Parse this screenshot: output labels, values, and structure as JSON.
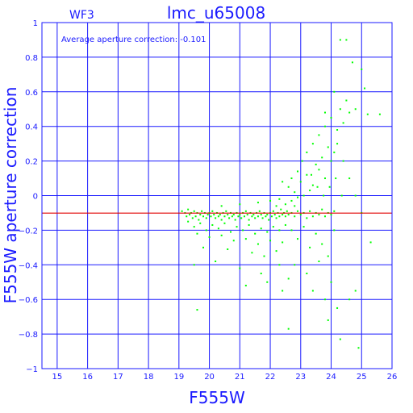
{
  "chart_data": {
    "type": "scatter",
    "title": "lmc_u65008",
    "chip_label": "WF3",
    "annotation": "Average aperture correction: -0.101",
    "xlabel": "F555W",
    "ylabel": "F555W aperture correction",
    "xlim": [
      14.5,
      26
    ],
    "ylim": [
      -1,
      1
    ],
    "x_ticks": [
      15,
      16,
      17,
      18,
      19,
      20,
      21,
      22,
      23,
      24,
      25,
      26
    ],
    "y_ticks": [
      -1,
      -0.8,
      -0.6,
      -0.4,
      -0.2,
      0,
      0.2,
      0.4,
      0.6,
      0.8,
      1
    ],
    "x_tick_labels": [
      "15",
      "16",
      "17",
      "18",
      "19",
      "20",
      "21",
      "22",
      "23",
      "24",
      "25",
      "26"
    ],
    "y_tick_labels": [
      "−1",
      "−0.8",
      "−0.6",
      "−0.4",
      "−0.2",
      "0",
      "0.2",
      "0.4",
      "0.6",
      "0.8",
      "1"
    ],
    "grid": true,
    "reference_line": {
      "y": -0.101,
      "color": "#e00000"
    },
    "colors": {
      "axes": "#1a1aff",
      "grid": "#1a1aff",
      "points": "#00ff00",
      "text": "#1a1aff",
      "annotation": "#1a1aff"
    },
    "series": [
      {
        "points": [
          [
            19.1,
            -0.09
          ],
          [
            19.2,
            -0.1
          ],
          [
            19.25,
            -0.12
          ],
          [
            19.3,
            -0.08
          ],
          [
            19.35,
            -0.11
          ],
          [
            19.4,
            -0.1
          ],
          [
            19.45,
            -0.13
          ],
          [
            19.5,
            -0.09
          ],
          [
            19.55,
            -0.12
          ],
          [
            19.6,
            -0.1
          ],
          [
            19.65,
            -0.14
          ],
          [
            19.7,
            -0.11
          ],
          [
            19.75,
            -0.09
          ],
          [
            19.8,
            -0.12
          ],
          [
            19.85,
            -0.1
          ],
          [
            19.9,
            -0.13
          ],
          [
            19.95,
            -0.11
          ],
          [
            20.0,
            -0.1
          ],
          [
            20.05,
            -0.12
          ],
          [
            20.1,
            -0.09
          ],
          [
            20.15,
            -0.11
          ],
          [
            20.2,
            -0.13
          ],
          [
            20.25,
            -0.1
          ],
          [
            20.3,
            -0.12
          ],
          [
            20.35,
            -0.11
          ],
          [
            20.4,
            -0.14
          ],
          [
            20.45,
            -0.1
          ],
          [
            20.5,
            -0.12
          ],
          [
            20.55,
            -0.09
          ],
          [
            20.6,
            -0.11
          ],
          [
            20.65,
            -0.13
          ],
          [
            20.7,
            -0.1
          ],
          [
            20.75,
            -0.12
          ],
          [
            20.8,
            -0.11
          ],
          [
            20.85,
            -0.14
          ],
          [
            20.9,
            -0.1
          ],
          [
            20.95,
            -0.12
          ],
          [
            21.0,
            -0.11
          ],
          [
            21.05,
            -0.13
          ],
          [
            21.1,
            -0.1
          ],
          [
            21.15,
            -0.12
          ],
          [
            21.2,
            -0.09
          ],
          [
            21.25,
            -0.11
          ],
          [
            21.3,
            -0.14
          ],
          [
            21.35,
            -0.1
          ],
          [
            21.4,
            -0.12
          ],
          [
            21.45,
            -0.11
          ],
          [
            21.5,
            -0.13
          ],
          [
            21.55,
            -0.1
          ],
          [
            21.6,
            -0.12
          ],
          [
            21.65,
            -0.09
          ],
          [
            21.7,
            -0.11
          ],
          [
            21.75,
            -0.13
          ],
          [
            21.8,
            -0.1
          ],
          [
            21.85,
            -0.12
          ],
          [
            21.9,
            -0.11
          ],
          [
            21.95,
            -0.14
          ],
          [
            22.0,
            -0.1
          ],
          [
            22.05,
            -0.12
          ],
          [
            22.1,
            -0.09
          ],
          [
            22.15,
            -0.11
          ],
          [
            22.2,
            -0.13
          ],
          [
            22.25,
            -0.1
          ],
          [
            22.3,
            -0.12
          ],
          [
            22.35,
            -0.08
          ],
          [
            22.4,
            -0.11
          ],
          [
            22.45,
            -0.1
          ],
          [
            22.5,
            -0.12
          ],
          [
            22.55,
            -0.09
          ],
          [
            22.6,
            -0.11
          ],
          [
            19.3,
            -0.15
          ],
          [
            19.5,
            -0.18
          ],
          [
            19.7,
            -0.16
          ],
          [
            19.9,
            -0.2
          ],
          [
            20.1,
            -0.17
          ],
          [
            20.3,
            -0.19
          ],
          [
            20.5,
            -0.16
          ],
          [
            20.7,
            -0.21
          ],
          [
            20.9,
            -0.18
          ],
          [
            21.1,
            -0.2
          ],
          [
            21.3,
            -0.17
          ],
          [
            21.5,
            -0.22
          ],
          [
            21.7,
            -0.19
          ],
          [
            21.9,
            -0.21
          ],
          [
            22.1,
            -0.18
          ],
          [
            22.3,
            -0.2
          ],
          [
            22.5,
            -0.17
          ],
          [
            19.6,
            -0.22
          ],
          [
            20.0,
            -0.24
          ],
          [
            20.4,
            -0.23
          ],
          [
            20.8,
            -0.26
          ],
          [
            21.2,
            -0.25
          ],
          [
            21.6,
            -0.28
          ],
          [
            22.0,
            -0.26
          ],
          [
            22.4,
            -0.27
          ],
          [
            19.8,
            -0.3
          ],
          [
            20.6,
            -0.31
          ],
          [
            21.4,
            -0.33
          ],
          [
            21.8,
            -0.35
          ],
          [
            22.2,
            -0.32
          ],
          [
            19.5,
            -0.4
          ],
          [
            20.2,
            -0.38
          ],
          [
            21.0,
            -0.42
          ],
          [
            21.7,
            -0.45
          ],
          [
            22.3,
            -0.4
          ],
          [
            21.2,
            -0.52
          ],
          [
            21.9,
            -0.5
          ],
          [
            22.4,
            -0.55
          ],
          [
            22.6,
            -0.48
          ],
          [
            19.6,
            -0.66
          ],
          [
            20.4,
            -0.06
          ],
          [
            21.0,
            -0.05
          ],
          [
            21.6,
            -0.04
          ],
          [
            22.0,
            -0.03
          ],
          [
            22.3,
            -0.02
          ],
          [
            22.5,
            -0.05
          ],
          [
            22.7,
            -0.03
          ],
          [
            22.8,
            -0.06
          ],
          [
            22.9,
            -0.01
          ],
          [
            22.2,
            -0.06
          ],
          [
            22.7,
            -0.1
          ],
          [
            22.8,
            -0.12
          ],
          [
            22.9,
            -0.09
          ],
          [
            23.0,
            -0.11
          ],
          [
            23.1,
            -0.1
          ],
          [
            23.2,
            -0.13
          ],
          [
            23.3,
            -0.09
          ],
          [
            23.4,
            -0.12
          ],
          [
            23.5,
            -0.1
          ],
          [
            23.6,
            -0.11
          ],
          [
            23.7,
            -0.08
          ],
          [
            23.8,
            -0.12
          ],
          [
            23.9,
            -0.1
          ],
          [
            24.0,
            -0.11
          ],
          [
            24.1,
            -0.09
          ],
          [
            22.7,
            -0.2
          ],
          [
            22.9,
            -0.25
          ],
          [
            23.1,
            -0.18
          ],
          [
            23.3,
            -0.3
          ],
          [
            23.5,
            -0.22
          ],
          [
            23.7,
            -0.28
          ],
          [
            23.9,
            -0.35
          ],
          [
            24.1,
            -0.2
          ],
          [
            22.8,
            -0.4
          ],
          [
            23.2,
            -0.45
          ],
          [
            23.6,
            -0.38
          ],
          [
            24.0,
            -0.5
          ],
          [
            23.4,
            -0.55
          ],
          [
            23.8,
            -0.6
          ],
          [
            24.2,
            -0.65
          ],
          [
            22.6,
            -0.77
          ],
          [
            23.9,
            -0.72
          ],
          [
            24.3,
            -0.83
          ],
          [
            24.6,
            -0.6
          ],
          [
            24.8,
            -0.55
          ],
          [
            24.9,
            -0.88
          ],
          [
            22.6,
            0.05
          ],
          [
            22.8,
            0.02
          ],
          [
            23.0,
            0.08
          ],
          [
            23.2,
            0.12
          ],
          [
            23.4,
            0.06
          ],
          [
            23.6,
            0.15
          ],
          [
            23.8,
            0.1
          ],
          [
            24.0,
            0.2
          ],
          [
            23.1,
            0.0
          ],
          [
            23.3,
            0.03
          ],
          [
            23.5,
            0.18
          ],
          [
            23.7,
            0.22
          ],
          [
            23.9,
            0.28
          ],
          [
            24.1,
            0.25
          ],
          [
            23.2,
            0.25
          ],
          [
            23.4,
            0.3
          ],
          [
            23.6,
            0.35
          ],
          [
            23.8,
            0.4
          ],
          [
            24.0,
            0.45
          ],
          [
            24.2,
            0.38
          ],
          [
            24.3,
            0.5
          ],
          [
            24.4,
            0.42
          ],
          [
            24.5,
            0.55
          ],
          [
            24.6,
            0.48
          ],
          [
            24.2,
            0.3
          ],
          [
            24.4,
            0.2
          ],
          [
            24.6,
            0.1
          ],
          [
            24.8,
            0.0
          ],
          [
            23.8,
            0.48
          ],
          [
            24.1,
            0.6
          ],
          [
            24.3,
            0.9
          ],
          [
            24.5,
            0.9
          ],
          [
            24.7,
            0.77
          ],
          [
            24.8,
            0.5
          ],
          [
            25.0,
            0.73
          ],
          [
            25.1,
            0.62
          ],
          [
            25.2,
            0.47
          ],
          [
            25.6,
            0.47
          ],
          [
            25.3,
            -0.27
          ],
          [
            25.0,
            -0.1
          ],
          [
            22.4,
            0.08
          ],
          [
            22.7,
            0.1
          ],
          [
            22.9,
            0.14
          ],
          [
            23.05,
            0.2
          ],
          [
            23.35,
            0.12
          ],
          [
            23.55,
            0.05
          ],
          [
            23.75,
            0.0
          ],
          [
            23.95,
            0.05
          ],
          [
            24.15,
            0.1
          ],
          [
            24.35,
            0.0
          ]
        ]
      }
    ]
  }
}
